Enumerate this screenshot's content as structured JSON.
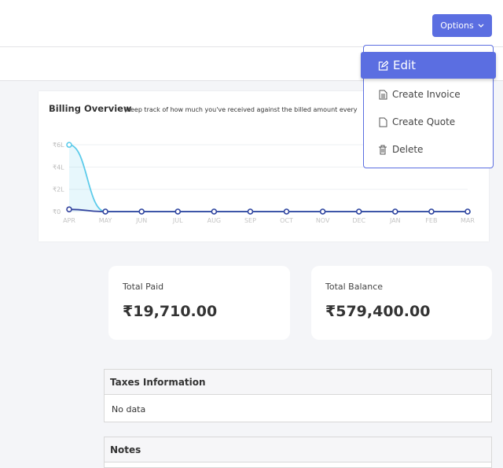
{
  "header": {
    "options_button": "Options"
  },
  "dropdown": {
    "items": [
      "Edit",
      "Create Invoice",
      "Create Quote",
      "Delete"
    ]
  },
  "chart_data": {
    "type": "line",
    "title": "Billing Overview",
    "subtitle": "(Keep track of how much you've received against the billed amount every",
    "categories": [
      "APR",
      "MAY",
      "JUN",
      "JUL",
      "AUG",
      "SEP",
      "OCT",
      "NOV",
      "DEC",
      "JAN",
      "FEB",
      "MAR"
    ],
    "series": [
      {
        "color": "#5ccbea",
        "values": [
          599110,
          0,
          0,
          0,
          0,
          0,
          0,
          0,
          0,
          0,
          0,
          0
        ]
      },
      {
        "color": "#33439e",
        "values": [
          19710,
          0,
          0,
          0,
          0,
          0,
          0,
          0,
          0,
          0,
          0,
          0
        ]
      }
    ],
    "ylim": [
      0,
      600000
    ],
    "yticks": [
      {
        "value": 0,
        "label": "₹0"
      },
      {
        "value": 200000,
        "label": "₹2L"
      },
      {
        "value": 400000,
        "label": "₹4L"
      },
      {
        "value": 600000,
        "label": "₹6L"
      }
    ],
    "grid": true
  },
  "summary": [
    {
      "label": "Total Paid",
      "value": "₹19,710.00"
    },
    {
      "label": "Total Balance",
      "value": "₹579,400.00"
    }
  ],
  "taxes": {
    "title": "Taxes Information",
    "body": "No data"
  },
  "notes": {
    "title": "Notes"
  }
}
